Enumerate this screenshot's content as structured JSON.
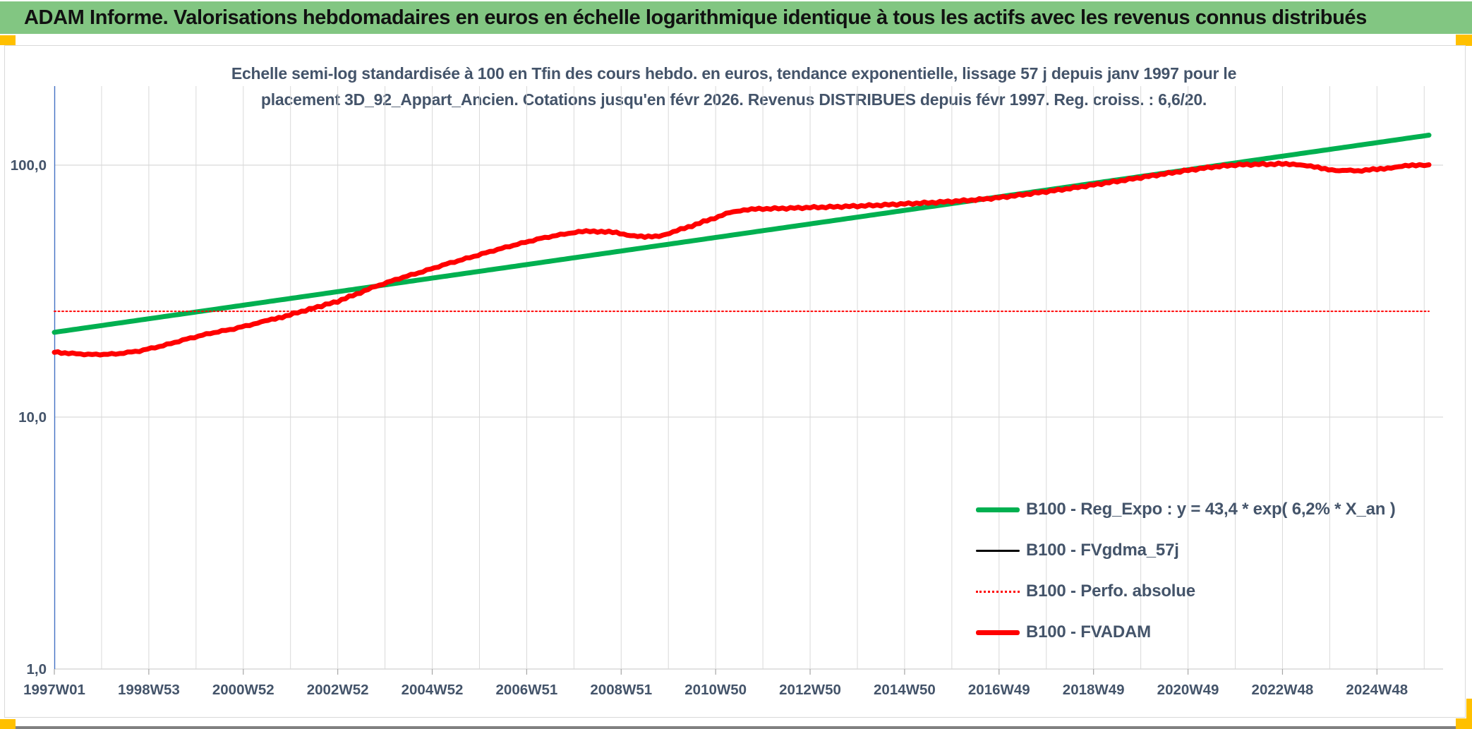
{
  "header": {
    "title": "ADAM Informe. Valorisations hebdomadaires en euros en échelle logarithmique identique à tous les actifs avec les revenus connus distribués",
    "bg_color": "#82C682",
    "accent_color": "#FFC000"
  },
  "chart_data": {
    "type": "line",
    "title_line1": "Echelle semi-log standardisée à 100 en Tfin des cours hebdo. en euros, tendance exponentielle, lissage 57 j depuis janv 1997 pour le",
    "title_line2": "placement 3D_92_Appart_Ancien. Cotations jusqu'en févr 2026. Revenus DISTRIBUES depuis févr 1997. Reg. croiss. : 6,6/20.",
    "y_scale": "log10",
    "y_ticks": [
      {
        "label": "100,0",
        "value": 100
      },
      {
        "label": "10,0",
        "value": 10
      },
      {
        "label": "1,0",
        "value": 1
      }
    ],
    "x_range": [
      1997.0,
      2026.2
    ],
    "ylim": [
      1,
      200
    ],
    "grid": "vertical gridlines yearly, horizontal gridlines per decade",
    "legend_position": "inside lower right",
    "x_ticks": [
      {
        "label": "1997W01",
        "year": 1997.0
      },
      {
        "label": "1998W53",
        "year": 1999.0
      },
      {
        "label": "2000W52",
        "year": 2001.0
      },
      {
        "label": "2002W52",
        "year": 2003.0
      },
      {
        "label": "2004W52",
        "year": 2005.0
      },
      {
        "label": "2006W51",
        "year": 2007.0
      },
      {
        "label": "2008W51",
        "year": 2009.0
      },
      {
        "label": "2010W50",
        "year": 2011.0
      },
      {
        "label": "2012W50",
        "year": 2013.0
      },
      {
        "label": "2014W50",
        "year": 2015.0
      },
      {
        "label": "2016W49",
        "year": 2017.0
      },
      {
        "label": "2018W49",
        "year": 2019.0
      },
      {
        "label": "2020W49",
        "year": 2021.0
      },
      {
        "label": "2022W48",
        "year": 2023.0
      },
      {
        "label": "2024W48",
        "year": 2025.0
      }
    ],
    "axis_color": "#4472C4",
    "grid_color": "#D9D9D9",
    "tick_color": "#A6A6A6",
    "label_color": "#44546A",
    "series": [
      {
        "name": "B100 - Reg_Expo : y = 43,4 * exp( 6,2% *  X_an )",
        "color": "#00B050",
        "width": 7,
        "dash": null,
        "jitter": false,
        "points": [
          [
            1997.0,
            21.7
          ],
          [
            2026.1,
            131.5
          ]
        ]
      },
      {
        "name": "B100 - FVgdma_57j",
        "color": "#000000",
        "width": 2.5,
        "dash": null,
        "jitter": false,
        "points": [],
        "coincident_with": "B100 - FVADAM"
      },
      {
        "name": "B100 - Perfo. absolue",
        "color": "#FF0000",
        "width": 2,
        "dash": "2 3.5",
        "jitter": false,
        "points": [
          [
            1997.0,
            26.3
          ],
          [
            2026.1,
            26.3
          ]
        ]
      },
      {
        "name": "B100 - FVADAM",
        "color": "#FF0000",
        "width": 7,
        "dash": null,
        "jitter": true,
        "points": [
          [
            1997.0,
            18.2
          ],
          [
            1997.3,
            17.9
          ],
          [
            1997.8,
            17.7
          ],
          [
            1998.3,
            17.8
          ],
          [
            1998.8,
            18.3
          ],
          [
            1999.3,
            19.2
          ],
          [
            1999.8,
            20.4
          ],
          [
            2000.3,
            21.5
          ],
          [
            2000.8,
            22.4
          ],
          [
            2001.3,
            23.6
          ],
          [
            2001.9,
            25.2
          ],
          [
            2002.4,
            26.8
          ],
          [
            2003.0,
            28.8
          ],
          [
            2003.4,
            30.8
          ],
          [
            2003.8,
            33.0
          ],
          [
            2004.3,
            35.5
          ],
          [
            2004.8,
            37.8
          ],
          [
            2005.3,
            40.5
          ],
          [
            2005.8,
            43.0
          ],
          [
            2006.3,
            45.8
          ],
          [
            2006.8,
            48.5
          ],
          [
            2007.3,
            51.2
          ],
          [
            2007.8,
            53.3
          ],
          [
            2008.1,
            54.5
          ],
          [
            2008.5,
            54.6
          ],
          [
            2008.9,
            54.0
          ],
          [
            2009.2,
            52.6
          ],
          [
            2009.5,
            51.8
          ],
          [
            2009.8,
            52.3
          ],
          [
            2010.1,
            54.3
          ],
          [
            2010.5,
            57.5
          ],
          [
            2010.9,
            61.0
          ],
          [
            2011.3,
            64.8
          ],
          [
            2011.6,
            66.5
          ],
          [
            2012.0,
            67.1
          ],
          [
            2012.5,
            67.4
          ],
          [
            2013.0,
            67.9
          ],
          [
            2013.5,
            68.3
          ],
          [
            2014.0,
            68.8
          ],
          [
            2014.5,
            69.4
          ],
          [
            2015.0,
            70.2
          ],
          [
            2015.5,
            70.9
          ],
          [
            2016.0,
            71.8
          ],
          [
            2016.5,
            72.8
          ],
          [
            2017.0,
            74.3
          ],
          [
            2017.5,
            76.3
          ],
          [
            2018.0,
            78.5
          ],
          [
            2018.5,
            80.8
          ],
          [
            2019.0,
            83.5
          ],
          [
            2019.5,
            86.3
          ],
          [
            2020.0,
            89.3
          ],
          [
            2020.5,
            92.3
          ],
          [
            2021.0,
            95.4
          ],
          [
            2021.5,
            98.2
          ],
          [
            2022.0,
            100.2
          ],
          [
            2022.5,
            100.8
          ],
          [
            2023.0,
            101.1
          ],
          [
            2023.3,
            100.9
          ],
          [
            2023.6,
            98.8
          ],
          [
            2023.9,
            96.5
          ],
          [
            2024.2,
            95.3
          ],
          [
            2024.6,
            95.0
          ],
          [
            2025.0,
            96.3
          ],
          [
            2025.3,
            97.8
          ],
          [
            2025.6,
            99.2
          ],
          [
            2025.9,
            100.0
          ],
          [
            2026.1,
            100.3
          ]
        ]
      }
    ]
  }
}
